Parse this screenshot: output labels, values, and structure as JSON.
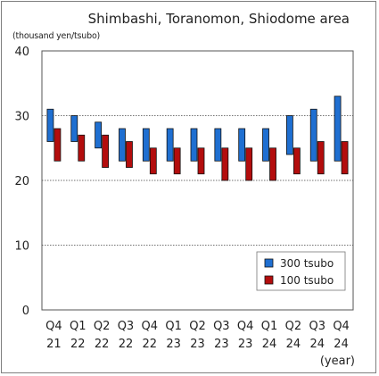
{
  "chart_data": {
    "type": "bar",
    "title": "Shimbashi, Toranomon, Shiodome area",
    "ylabel": "(thousand yen/tsubo)",
    "xlabel": "(year)",
    "ylim": [
      0,
      40
    ],
    "yticks": [
      0,
      10,
      20,
      30,
      40
    ],
    "grid": true,
    "legend_position": "bottom-right",
    "categories": [
      {
        "quarter": "Q4",
        "year": "21"
      },
      {
        "quarter": "Q1",
        "year": "22"
      },
      {
        "quarter": "Q2",
        "year": "22"
      },
      {
        "quarter": "Q3",
        "year": "22"
      },
      {
        "quarter": "Q4",
        "year": "22"
      },
      {
        "quarter": "Q1",
        "year": "23"
      },
      {
        "quarter": "Q2",
        "year": "23"
      },
      {
        "quarter": "Q3",
        "year": "23"
      },
      {
        "quarter": "Q4",
        "year": "23"
      },
      {
        "quarter": "Q1",
        "year": "24"
      },
      {
        "quarter": "Q2",
        "year": "24"
      },
      {
        "quarter": "Q3",
        "year": "24"
      },
      {
        "quarter": "Q4",
        "year": "24"
      }
    ],
    "series": [
      {
        "name": "300 tsubo",
        "color": "#1f6fd1",
        "ranges": [
          [
            26,
            31
          ],
          [
            26,
            30
          ],
          [
            25,
            29
          ],
          [
            23,
            28
          ],
          [
            23,
            28
          ],
          [
            23,
            28
          ],
          [
            23,
            28
          ],
          [
            23,
            28
          ],
          [
            23,
            28
          ],
          [
            23,
            28
          ],
          [
            24,
            30
          ],
          [
            23,
            31
          ],
          [
            23,
            33
          ]
        ]
      },
      {
        "name": "100 tsubo",
        "color": "#b30d0d",
        "ranges": [
          [
            23,
            28
          ],
          [
            23,
            27
          ],
          [
            22,
            27
          ],
          [
            22,
            26
          ],
          [
            21,
            25
          ],
          [
            21,
            25
          ],
          [
            21,
            25
          ],
          [
            20,
            25
          ],
          [
            20,
            25
          ],
          [
            20,
            25
          ],
          [
            21,
            25
          ],
          [
            21,
            26
          ],
          [
            21,
            26
          ]
        ]
      }
    ]
  }
}
